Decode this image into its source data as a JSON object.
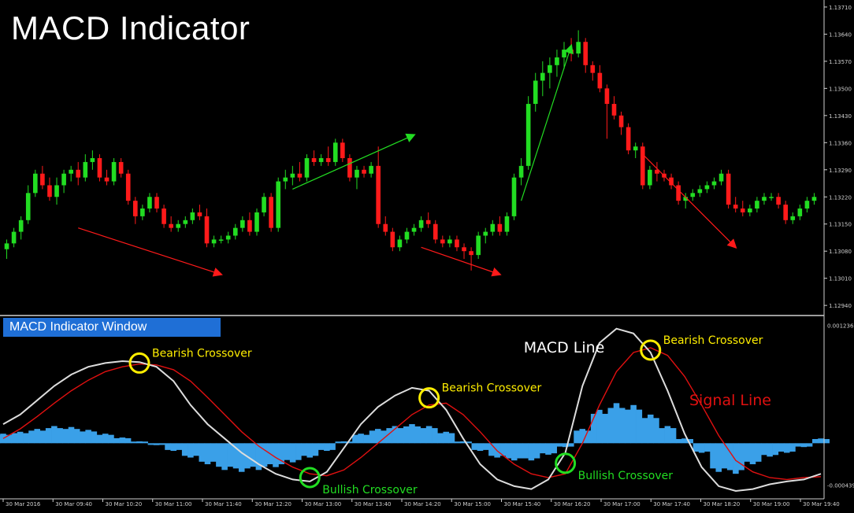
{
  "title": "MACD Indicator",
  "indicator_panel_label": "MACD Indicator Window",
  "colors": {
    "background": "#000000",
    "bull_candle": "#22dd22",
    "bear_candle": "#ff1a1a",
    "histogram": "#3aa0e8",
    "macd_line": "#dddddd",
    "signal_line": "#e01010",
    "bearish_marker": "#ffee00",
    "bullish_marker": "#22dd22"
  },
  "chart_data": [
    {
      "type": "candlestick",
      "title": "MACD Indicator",
      "price_axis_ticks": [
        "1.13710",
        "1.13640",
        "1.13570",
        "1.13500",
        "1.13430",
        "1.13360",
        "1.13290",
        "1.13220",
        "1.13150",
        "1.13080",
        "1.13010",
        "1.12940"
      ],
      "time_axis_ticks": [
        "30 Mar 2016",
        "30 Mar 09:40",
        "30 Mar 10:20",
        "30 Mar 11:00",
        "30 Mar 11:40",
        "30 Mar 12:20",
        "30 Mar 13:00",
        "30 Mar 13:40",
        "30 Mar 14:20",
        "30 Mar 15:00",
        "30 Mar 15:40",
        "30 Mar 16:20",
        "30 Mar 17:00",
        "30 Mar 17:40",
        "30 Mar 18:20",
        "30 Mar 19:00",
        "30 Mar 19:40"
      ],
      "ylim": [
        1.1292,
        1.1372
      ],
      "candles": [
        {
          "o": 1.13085,
          "h": 1.1311,
          "l": 1.1306,
          "c": 1.131
        },
        {
          "o": 1.131,
          "h": 1.1314,
          "l": 1.1309,
          "c": 1.1313
        },
        {
          "o": 1.1313,
          "h": 1.1317,
          "l": 1.1311,
          "c": 1.1316
        },
        {
          "o": 1.1316,
          "h": 1.1325,
          "l": 1.1315,
          "c": 1.1323
        },
        {
          "o": 1.1323,
          "h": 1.1329,
          "l": 1.1322,
          "c": 1.1328
        },
        {
          "o": 1.1328,
          "h": 1.133,
          "l": 1.1324,
          "c": 1.1325
        },
        {
          "o": 1.1325,
          "h": 1.1327,
          "l": 1.1321,
          "c": 1.1322
        },
        {
          "o": 1.1322,
          "h": 1.1327,
          "l": 1.132,
          "c": 1.1325
        },
        {
          "o": 1.1325,
          "h": 1.1329,
          "l": 1.1323,
          "c": 1.1328
        },
        {
          "o": 1.1328,
          "h": 1.133,
          "l": 1.1326,
          "c": 1.1329
        },
        {
          "o": 1.1329,
          "h": 1.1331,
          "l": 1.1325,
          "c": 1.1327
        },
        {
          "o": 1.1327,
          "h": 1.1333,
          "l": 1.1326,
          "c": 1.1331
        },
        {
          "o": 1.1331,
          "h": 1.1334,
          "l": 1.1329,
          "c": 1.1332
        },
        {
          "o": 1.1332,
          "h": 1.1333,
          "l": 1.1326,
          "c": 1.1327
        },
        {
          "o": 1.1327,
          "h": 1.1329,
          "l": 1.1325,
          "c": 1.1326
        },
        {
          "o": 1.1326,
          "h": 1.1332,
          "l": 1.1325,
          "c": 1.1331
        },
        {
          "o": 1.1331,
          "h": 1.1332,
          "l": 1.1327,
          "c": 1.1328
        },
        {
          "o": 1.1328,
          "h": 1.1329,
          "l": 1.132,
          "c": 1.1321
        },
        {
          "o": 1.1321,
          "h": 1.1322,
          "l": 1.1315,
          "c": 1.1317
        },
        {
          "o": 1.1317,
          "h": 1.132,
          "l": 1.1316,
          "c": 1.1319
        },
        {
          "o": 1.1319,
          "h": 1.1323,
          "l": 1.1318,
          "c": 1.1322
        },
        {
          "o": 1.1322,
          "h": 1.1323,
          "l": 1.1318,
          "c": 1.1319
        },
        {
          "o": 1.1319,
          "h": 1.132,
          "l": 1.1314,
          "c": 1.1315
        },
        {
          "o": 1.1315,
          "h": 1.1317,
          "l": 1.1313,
          "c": 1.1314
        },
        {
          "o": 1.1314,
          "h": 1.1316,
          "l": 1.1313,
          "c": 1.1315
        },
        {
          "o": 1.1315,
          "h": 1.1317,
          "l": 1.1314,
          "c": 1.1316
        },
        {
          "o": 1.1316,
          "h": 1.1319,
          "l": 1.1315,
          "c": 1.1318
        },
        {
          "o": 1.1318,
          "h": 1.132,
          "l": 1.1316,
          "c": 1.1317
        },
        {
          "o": 1.1317,
          "h": 1.1319,
          "l": 1.1309,
          "c": 1.131
        },
        {
          "o": 1.131,
          "h": 1.1312,
          "l": 1.1309,
          "c": 1.1311
        },
        {
          "o": 1.1311,
          "h": 1.1312,
          "l": 1.131,
          "c": 1.1311
        },
        {
          "o": 1.1311,
          "h": 1.1313,
          "l": 1.131,
          "c": 1.1312
        },
        {
          "o": 1.1312,
          "h": 1.1315,
          "l": 1.1311,
          "c": 1.1314
        },
        {
          "o": 1.1314,
          "h": 1.1317,
          "l": 1.1313,
          "c": 1.1316
        },
        {
          "o": 1.1316,
          "h": 1.1318,
          "l": 1.1312,
          "c": 1.1313
        },
        {
          "o": 1.1313,
          "h": 1.1319,
          "l": 1.1312,
          "c": 1.1318
        },
        {
          "o": 1.1318,
          "h": 1.1323,
          "l": 1.1317,
          "c": 1.1322
        },
        {
          "o": 1.1322,
          "h": 1.1323,
          "l": 1.1313,
          "c": 1.1314
        },
        {
          "o": 1.1314,
          "h": 1.1327,
          "l": 1.1313,
          "c": 1.1326
        },
        {
          "o": 1.1326,
          "h": 1.1329,
          "l": 1.1324,
          "c": 1.1327
        },
        {
          "o": 1.1327,
          "h": 1.133,
          "l": 1.1325,
          "c": 1.1328
        },
        {
          "o": 1.1328,
          "h": 1.1331,
          "l": 1.1326,
          "c": 1.1327
        },
        {
          "o": 1.1327,
          "h": 1.1333,
          "l": 1.1326,
          "c": 1.1332
        },
        {
          "o": 1.1332,
          "h": 1.1334,
          "l": 1.133,
          "c": 1.1331
        },
        {
          "o": 1.1331,
          "h": 1.1333,
          "l": 1.133,
          "c": 1.1332
        },
        {
          "o": 1.1332,
          "h": 1.1335,
          "l": 1.133,
          "c": 1.1331
        },
        {
          "o": 1.1331,
          "h": 1.1337,
          "l": 1.133,
          "c": 1.1336
        },
        {
          "o": 1.1336,
          "h": 1.1337,
          "l": 1.1331,
          "c": 1.1332
        },
        {
          "o": 1.1332,
          "h": 1.1333,
          "l": 1.1326,
          "c": 1.1327
        },
        {
          "o": 1.1327,
          "h": 1.133,
          "l": 1.1324,
          "c": 1.1329
        },
        {
          "o": 1.1329,
          "h": 1.133,
          "l": 1.1327,
          "c": 1.1328
        },
        {
          "o": 1.1328,
          "h": 1.1331,
          "l": 1.1327,
          "c": 1.133
        },
        {
          "o": 1.133,
          "h": 1.1335,
          "l": 1.1314,
          "c": 1.1315
        },
        {
          "o": 1.1315,
          "h": 1.1317,
          "l": 1.1312,
          "c": 1.1313
        },
        {
          "o": 1.1313,
          "h": 1.1314,
          "l": 1.1308,
          "c": 1.1309
        },
        {
          "o": 1.1309,
          "h": 1.1312,
          "l": 1.1308,
          "c": 1.1311
        },
        {
          "o": 1.1311,
          "h": 1.1314,
          "l": 1.131,
          "c": 1.1313
        },
        {
          "o": 1.1313,
          "h": 1.1315,
          "l": 1.1312,
          "c": 1.1314
        },
        {
          "o": 1.1314,
          "h": 1.1317,
          "l": 1.1313,
          "c": 1.1316
        },
        {
          "o": 1.1316,
          "h": 1.1318,
          "l": 1.1314,
          "c": 1.1315
        },
        {
          "o": 1.1315,
          "h": 1.1316,
          "l": 1.131,
          "c": 1.1311
        },
        {
          "o": 1.1311,
          "h": 1.1312,
          "l": 1.1309,
          "c": 1.131
        },
        {
          "o": 1.131,
          "h": 1.1312,
          "l": 1.1309,
          "c": 1.1311
        },
        {
          "o": 1.1311,
          "h": 1.1312,
          "l": 1.1308,
          "c": 1.1309
        },
        {
          "o": 1.1309,
          "h": 1.131,
          "l": 1.1306,
          "c": 1.1308
        },
        {
          "o": 1.1308,
          "h": 1.1309,
          "l": 1.1303,
          "c": 1.1307
        },
        {
          "o": 1.1307,
          "h": 1.1313,
          "l": 1.1306,
          "c": 1.1312
        },
        {
          "o": 1.1312,
          "h": 1.1314,
          "l": 1.131,
          "c": 1.1313
        },
        {
          "o": 1.1313,
          "h": 1.1316,
          "l": 1.1312,
          "c": 1.1315
        },
        {
          "o": 1.1315,
          "h": 1.1317,
          "l": 1.1312,
          "c": 1.1313
        },
        {
          "o": 1.1313,
          "h": 1.1318,
          "l": 1.1312,
          "c": 1.1317
        },
        {
          "o": 1.1317,
          "h": 1.1328,
          "l": 1.1316,
          "c": 1.1327
        },
        {
          "o": 1.1327,
          "h": 1.1332,
          "l": 1.1325,
          "c": 1.133
        },
        {
          "o": 1.133,
          "h": 1.1348,
          "l": 1.1329,
          "c": 1.1346
        },
        {
          "o": 1.1346,
          "h": 1.1354,
          "l": 1.1344,
          "c": 1.1352
        },
        {
          "o": 1.1352,
          "h": 1.1357,
          "l": 1.1348,
          "c": 1.1354
        },
        {
          "o": 1.1354,
          "h": 1.1358,
          "l": 1.135,
          "c": 1.1356
        },
        {
          "o": 1.1356,
          "h": 1.136,
          "l": 1.1353,
          "c": 1.1358
        },
        {
          "o": 1.1358,
          "h": 1.1362,
          "l": 1.1355,
          "c": 1.136
        },
        {
          "o": 1.136,
          "h": 1.1363,
          "l": 1.1357,
          "c": 1.1359
        },
        {
          "o": 1.1359,
          "h": 1.1365,
          "l": 1.1358,
          "c": 1.1362
        },
        {
          "o": 1.1362,
          "h": 1.1363,
          "l": 1.1354,
          "c": 1.1356
        },
        {
          "o": 1.1356,
          "h": 1.1357,
          "l": 1.1352,
          "c": 1.1354
        },
        {
          "o": 1.1354,
          "h": 1.1356,
          "l": 1.1349,
          "c": 1.135
        },
        {
          "o": 1.135,
          "h": 1.1351,
          "l": 1.1337,
          "c": 1.1346
        },
        {
          "o": 1.1346,
          "h": 1.1348,
          "l": 1.1342,
          "c": 1.1343
        },
        {
          "o": 1.1343,
          "h": 1.1344,
          "l": 1.1338,
          "c": 1.134
        },
        {
          "o": 1.134,
          "h": 1.1341,
          "l": 1.1333,
          "c": 1.1334
        },
        {
          "o": 1.1334,
          "h": 1.1336,
          "l": 1.1332,
          "c": 1.1335
        },
        {
          "o": 1.1335,
          "h": 1.1336,
          "l": 1.1324,
          "c": 1.1325
        },
        {
          "o": 1.1325,
          "h": 1.133,
          "l": 1.1324,
          "c": 1.1329
        },
        {
          "o": 1.1329,
          "h": 1.1331,
          "l": 1.1326,
          "c": 1.1328
        },
        {
          "o": 1.1328,
          "h": 1.1329,
          "l": 1.1326,
          "c": 1.1327
        },
        {
          "o": 1.1327,
          "h": 1.1328,
          "l": 1.1324,
          "c": 1.1325
        },
        {
          "o": 1.1325,
          "h": 1.1326,
          "l": 1.132,
          "c": 1.1321
        },
        {
          "o": 1.1321,
          "h": 1.1323,
          "l": 1.1319,
          "c": 1.1322
        },
        {
          "o": 1.1322,
          "h": 1.1324,
          "l": 1.1321,
          "c": 1.1323
        },
        {
          "o": 1.1323,
          "h": 1.1325,
          "l": 1.1322,
          "c": 1.1324
        },
        {
          "o": 1.1324,
          "h": 1.1326,
          "l": 1.1323,
          "c": 1.1325
        },
        {
          "o": 1.1325,
          "h": 1.1327,
          "l": 1.1324,
          "c": 1.1326
        },
        {
          "o": 1.1326,
          "h": 1.1329,
          "l": 1.1325,
          "c": 1.1328
        },
        {
          "o": 1.1328,
          "h": 1.1329,
          "l": 1.1319,
          "c": 1.132
        },
        {
          "o": 1.132,
          "h": 1.1322,
          "l": 1.1318,
          "c": 1.1319
        },
        {
          "o": 1.1319,
          "h": 1.1321,
          "l": 1.1317,
          "c": 1.1318
        },
        {
          "o": 1.1318,
          "h": 1.132,
          "l": 1.1317,
          "c": 1.1319
        },
        {
          "o": 1.1319,
          "h": 1.1322,
          "l": 1.1318,
          "c": 1.1321
        },
        {
          "o": 1.1321,
          "h": 1.1323,
          "l": 1.132,
          "c": 1.1322
        },
        {
          "o": 1.1322,
          "h": 1.1323,
          "l": 1.1321,
          "c": 1.1322
        },
        {
          "o": 1.1322,
          "h": 1.1323,
          "l": 1.1319,
          "c": 1.132
        },
        {
          "o": 1.132,
          "h": 1.1321,
          "l": 1.1315,
          "c": 1.1316
        },
        {
          "o": 1.1316,
          "h": 1.1318,
          "l": 1.1315,
          "c": 1.1317
        },
        {
          "o": 1.1317,
          "h": 1.132,
          "l": 1.1316,
          "c": 1.1319
        },
        {
          "o": 1.1319,
          "h": 1.1322,
          "l": 1.1318,
          "c": 1.1321
        },
        {
          "o": 1.1321,
          "h": 1.1323,
          "l": 1.132,
          "c": 1.1322
        }
      ],
      "annotations": [
        {
          "kind": "arrow",
          "direction": "down",
          "color": "red",
          "from": [
            10,
            1.1314
          ],
          "to": [
            30,
            1.1302
          ]
        },
        {
          "kind": "arrow",
          "direction": "up",
          "color": "green",
          "from": [
            40,
            1.1324
          ],
          "to": [
            57,
            1.1338
          ]
        },
        {
          "kind": "arrow",
          "direction": "down",
          "color": "red",
          "from": [
            58,
            1.1309
          ],
          "to": [
            69,
            1.1302
          ]
        },
        {
          "kind": "arrow",
          "direction": "up",
          "color": "green",
          "from": [
            72,
            1.1321
          ],
          "to": [
            79,
            1.1361
          ]
        },
        {
          "kind": "arrow",
          "direction": "down",
          "color": "red",
          "from": [
            89,
            1.1333
          ],
          "to": [
            102,
            1.1309
          ]
        }
      ]
    },
    {
      "type": "line",
      "title": "MACD Indicator Window",
      "axis_ticks": [
        "0.001236",
        "-0.000439"
      ],
      "ylim": [
        -0.0005,
        0.00128
      ],
      "macd_line_label": "MACD Line",
      "signal_line_label": "Signal Line",
      "macd": [
        0.0002,
        0.0003,
        0.00045,
        0.0006,
        0.00072,
        0.0008,
        0.00084,
        0.00086,
        0.00085,
        0.0008,
        0.00065,
        0.0004,
        0.0002,
        5e-05,
        -0.0001,
        -0.00022,
        -0.00032,
        -0.00038,
        -0.0004,
        -0.0003,
        -5e-05,
        0.0002,
        0.00038,
        0.0005,
        0.00058,
        0.00055,
        0.00035,
        5e-05,
        -0.00022,
        -0.00038,
        -0.00045,
        -0.00048,
        -0.00038,
        -0.0001,
        0.0006,
        0.00105,
        0.0012,
        0.00115,
        0.00095,
        0.00055,
        0.0001,
        -0.00025,
        -0.00045,
        -0.0005,
        -0.00048,
        -0.00043,
        -0.0004,
        -0.00038,
        -0.00032
      ],
      "signal": [
        5e-05,
        0.00015,
        0.00028,
        0.00042,
        0.00055,
        0.00066,
        0.00075,
        0.0008,
        0.00083,
        0.00082,
        0.00077,
        0.00065,
        0.00048,
        0.0003,
        0.00012,
        -3e-05,
        -0.00015,
        -0.00025,
        -0.00032,
        -0.00034,
        -0.00028,
        -0.00015,
        0.0,
        0.00015,
        0.0003,
        0.0004,
        0.00042,
        0.0003,
        0.00012,
        -8e-05,
        -0.00022,
        -0.00032,
        -0.00036,
        -0.00032,
        0.0,
        0.0004,
        0.00075,
        0.00095,
        0.001,
        0.00092,
        0.0007,
        0.0004,
        8e-05,
        -0.00018,
        -0.0003,
        -0.00036,
        -0.00038,
        -0.00036,
        -0.00035
      ],
      "histogram": [
        0.0001,
        0.00012,
        0.00015,
        0.00018,
        0.00017,
        0.00014,
        0.0001,
        6e-05,
        2e-05,
        -2e-05,
        -8e-05,
        -0.00015,
        -0.00022,
        -0.00028,
        -0.0003,
        -0.00028,
        -0.00025,
        -0.0002,
        -0.00015,
        -8e-05,
        2e-05,
        0.0001,
        0.00015,
        0.00018,
        0.0002,
        0.00018,
        0.00012,
        2e-05,
        -8e-05,
        -0.00015,
        -0.00018,
        -0.00018,
        -0.00012,
        -4e-05,
        0.00015,
        0.00035,
        0.00042,
        0.0004,
        0.0003,
        0.00018,
        5e-05,
        -0.0001,
        -0.0003,
        -0.00032,
        -0.00022,
        -0.00014,
        -0.0001,
        -4e-05,
        5e-05
      ],
      "markers": [
        {
          "type": "Bearish Crossover",
          "index": 8
        },
        {
          "type": "Bullish Crossover",
          "index": 18
        },
        {
          "type": "Bearish Crossover",
          "index": 25
        },
        {
          "type": "Bullish Crossover",
          "index": 33
        },
        {
          "type": "Bearish Crossover",
          "index": 38
        }
      ]
    }
  ]
}
